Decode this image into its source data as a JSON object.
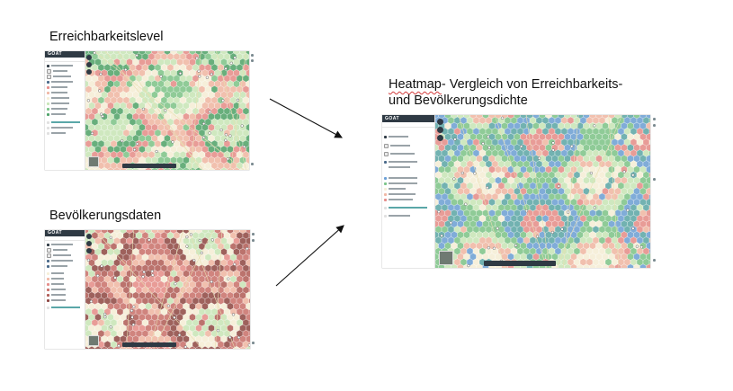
{
  "captions": {
    "accessibility": "Erreichbarkeitslevel",
    "population": "Bevölkerungsdaten",
    "heatmap_word": "Heatmap",
    "heatmap_rest": "- Vergleich von Erreichbarkeits-",
    "heatmap_line2": "und Bevölkerungsdichte"
  },
  "app": {
    "logo": "GOAT"
  },
  "colors": {
    "green": "#7cc48a",
    "light_green": "#c8e6b8",
    "red": "#e58d8a",
    "dark_red": "#b05d58",
    "salmon": "#f0b7a5",
    "cream": "#f6efd8",
    "blue": "#6ba0d6",
    "teal": "#5aa7a8"
  }
}
